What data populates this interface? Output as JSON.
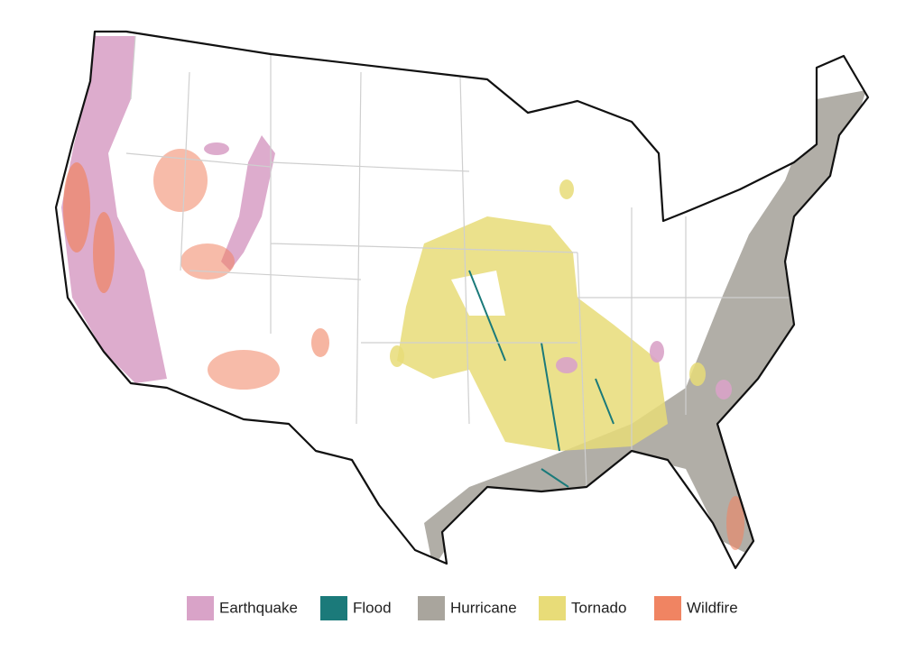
{
  "legend": {
    "items": [
      {
        "label": "Earthquake",
        "color": "#d9a3c8"
      },
      {
        "label": "Flood",
        "color": "#1b7a7a"
      },
      {
        "label": "Hurricane",
        "color": "#a9a59d"
      },
      {
        "label": "Tornado",
        "color": "#e8dc78"
      },
      {
        "label": "Wildfire",
        "color": "#f08462"
      }
    ]
  }
}
